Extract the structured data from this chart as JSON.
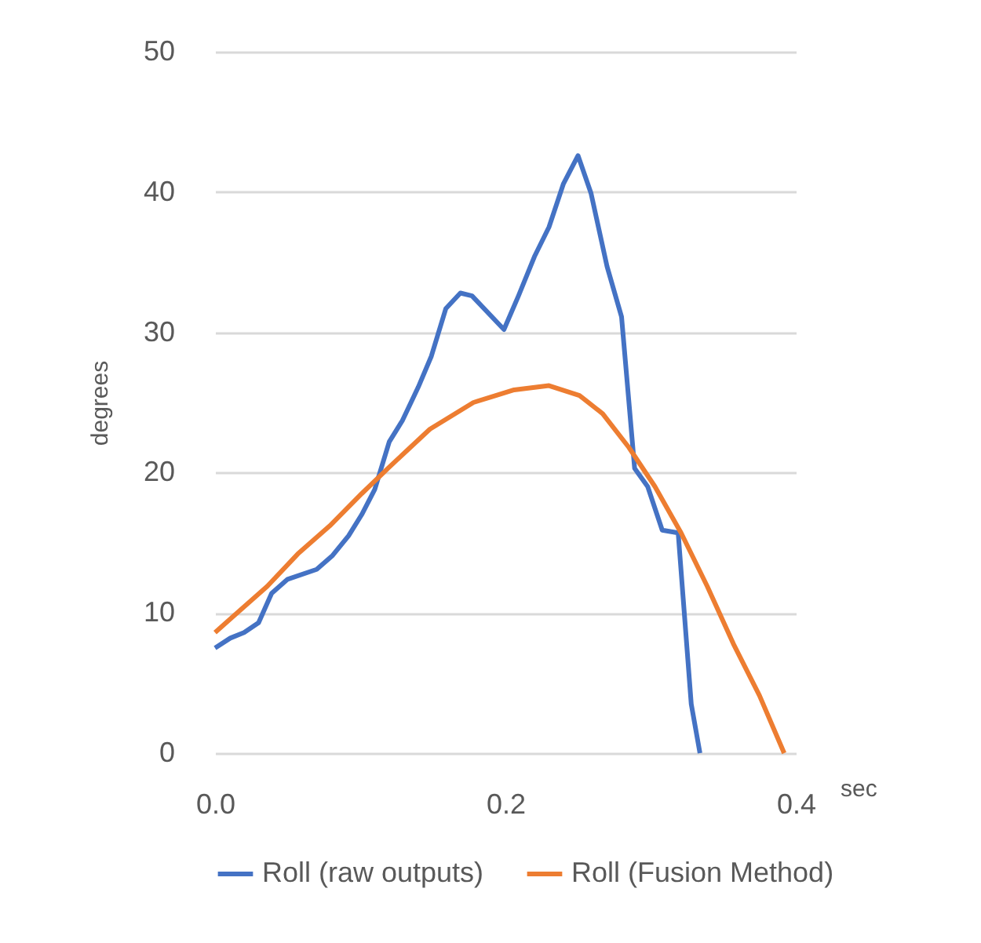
{
  "chart_data": {
    "type": "line",
    "xlabel": "sec",
    "ylabel": "degrees",
    "xlim": [
      0,
      0.4
    ],
    "xticks": [
      {
        "value": 0,
        "label": "0.0"
      },
      0.2,
      0.4
    ],
    "ylim": [
      0,
      50
    ],
    "yticks": [
      0,
      10,
      20,
      30,
      40,
      50
    ],
    "grid": "y",
    "legend": "bottom",
    "marker": "none",
    "line_style": "solid",
    "series": [
      {
        "name": "Roll (raw outputs)",
        "color": "#4472c4",
        "x": [
          0.0,
          0.0105,
          0.02,
          0.03,
          0.039,
          0.05,
          0.07,
          0.081,
          0.092,
          0.101,
          0.11,
          0.12,
          0.129,
          0.14,
          0.149,
          0.159,
          0.169,
          0.177,
          0.199,
          0.209,
          0.22,
          0.23,
          0.24,
          0.25,
          0.259,
          0.27,
          0.28,
          0.289,
          0.298,
          0.308,
          0.319,
          0.328,
          0.334
        ],
        "values": [
          7.5,
          8.2,
          8.6,
          9.3,
          11.4,
          12.4,
          13.1,
          14.1,
          15.5,
          17.0,
          18.8,
          22.2,
          23.7,
          26.1,
          28.3,
          31.7,
          32.8,
          32.6,
          30.2,
          32.6,
          35.4,
          37.5,
          40.6,
          42.6,
          39.9,
          34.7,
          31.1,
          20.3,
          19.0,
          15.9,
          15.7,
          3.5,
          0
        ]
      },
      {
        "name": "Roll (Fusion Method)",
        "color": "#ed7d31",
        "x": [
          0.0,
          0.012,
          0.036,
          0.057,
          0.079,
          0.101,
          0.119,
          0.148,
          0.178,
          0.206,
          0.23,
          0.251,
          0.267,
          0.285,
          0.303,
          0.321,
          0.339,
          0.357,
          0.375,
          0.392
        ],
        "values": [
          8.6,
          9.7,
          11.9,
          14.2,
          16.2,
          18.5,
          20.3,
          23.1,
          25.0,
          25.9,
          26.2,
          25.5,
          24.2,
          21.8,
          19.0,
          15.7,
          11.9,
          7.8,
          4.1,
          0
        ]
      }
    ]
  }
}
